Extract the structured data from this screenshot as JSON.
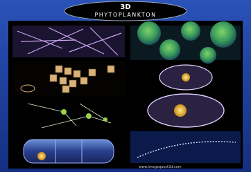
{
  "header": {
    "logo": "3D",
    "title": "PHYTOPLANKTON"
  },
  "footer": {
    "url": "www.imagequest3d.com"
  }
}
